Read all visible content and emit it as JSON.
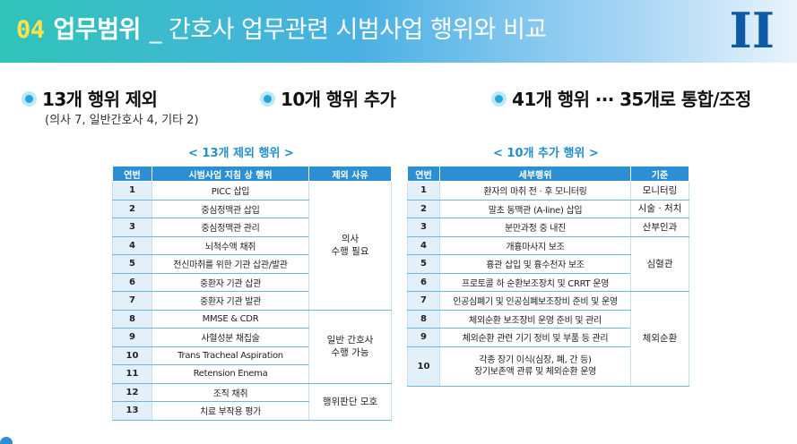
{
  "banner": {
    "number": "04",
    "keyword": "업무범위",
    "title": "_ 간호사 업무관련 시범사업 행위와 비교",
    "roman": "II"
  },
  "sections": {
    "excluded": {
      "heading": "13개 행위 제외",
      "sub": "(의사 7, 일반간호사 4, 기타 2)"
    },
    "added": {
      "heading": "10개 행위 추가"
    },
    "merged": {
      "heading": "41개 행위 ··· 35개로 통합/조정"
    }
  },
  "left_table": {
    "caption": "< 13개 제외 행위 >",
    "headers": [
      "연번",
      "시범사업 지침 상 행위",
      "제외 사유"
    ],
    "rows": [
      {
        "no": "1",
        "task": "PICC 삽입"
      },
      {
        "no": "2",
        "task": "중심정맥관 삽입"
      },
      {
        "no": "3",
        "task": "중심정맥관 관리"
      },
      {
        "no": "4",
        "task": "뇌척수액 채취"
      },
      {
        "no": "5",
        "task": "전신마취를 위한 기관 삽관/발관"
      },
      {
        "no": "6",
        "task": "중환자 기관 삽관"
      },
      {
        "no": "7",
        "task": "중환자 기관 발관"
      },
      {
        "no": "8",
        "task": "MMSE & CDR"
      },
      {
        "no": "9",
        "task": "사혈성분 채집술"
      },
      {
        "no": "10",
        "task": "Trans Tracheal Aspiration"
      },
      {
        "no": "11",
        "task": "Retension Enema"
      },
      {
        "no": "12",
        "task": "조직 채취"
      },
      {
        "no": "13",
        "task": "치료 부작용 평가"
      }
    ],
    "reasons": [
      {
        "line1": "의사",
        "line2": "수행 필요"
      },
      {
        "line1": "일반 간호사",
        "line2": "수행 가능"
      },
      {
        "line1": "행위판단 모호",
        "line2": ""
      }
    ]
  },
  "right_table": {
    "caption": "< 10개 추가 행위 >",
    "headers": [
      "연번",
      "세부행위",
      "기준"
    ],
    "rows": [
      {
        "no": "1",
        "task": "환자의 마취 전 · 후 모니터링"
      },
      {
        "no": "2",
        "task": "말초 동맥관 (A-line) 삽입"
      },
      {
        "no": "3",
        "task": "분만과정 중 내진"
      },
      {
        "no": "4",
        "task": "개흉마사지 보조"
      },
      {
        "no": "5",
        "task": "흉관 삽입 및 흉수천자 보조"
      },
      {
        "no": "6",
        "task": "프로토콜 하 순환보조장치 및 CRRT 운영"
      },
      {
        "no": "7",
        "task": "인공심폐기 및 인공심폐보조장비 준비 및 운영"
      },
      {
        "no": "8",
        "task": "체외순환 보조장비 운영 준비 및 관리"
      },
      {
        "no": "9",
        "task": "체외순환 관련 기기 정비 및 부품 등 관리"
      },
      {
        "no": "10",
        "task": "각종 장기 이식(심장, 폐, 간 등)",
        "task2": "장기보존액 관류 및 체외순환 운영"
      }
    ],
    "criteria": [
      "모니터링",
      "시술 · 처치",
      "산부인과",
      "심혈관",
      "체외순환"
    ]
  }
}
